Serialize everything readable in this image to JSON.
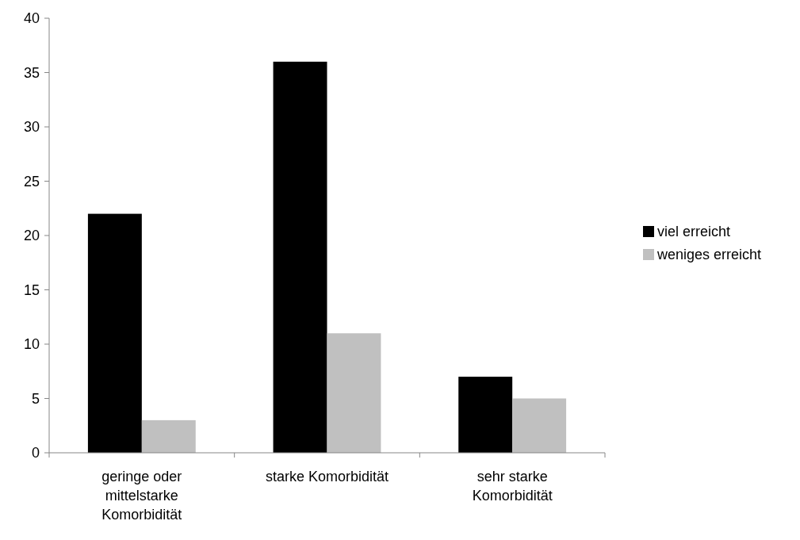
{
  "chart_data": {
    "type": "bar",
    "categories": [
      "geringe oder mittelstarke Komorbidität",
      "starke Komorbidität",
      "sehr starke Komorbidität"
    ],
    "series": [
      {
        "name": "viel erreicht",
        "color": "#000000",
        "values": [
          22,
          36,
          7
        ]
      },
      {
        "name": "weniges erreicht",
        "color": "#c0c0c0",
        "values": [
          3,
          11,
          5
        ]
      }
    ],
    "ylim": [
      0,
      40
    ],
    "yticks": [
      0,
      5,
      10,
      15,
      20,
      25,
      30,
      35,
      40
    ],
    "grid": false,
    "legend": "right"
  }
}
